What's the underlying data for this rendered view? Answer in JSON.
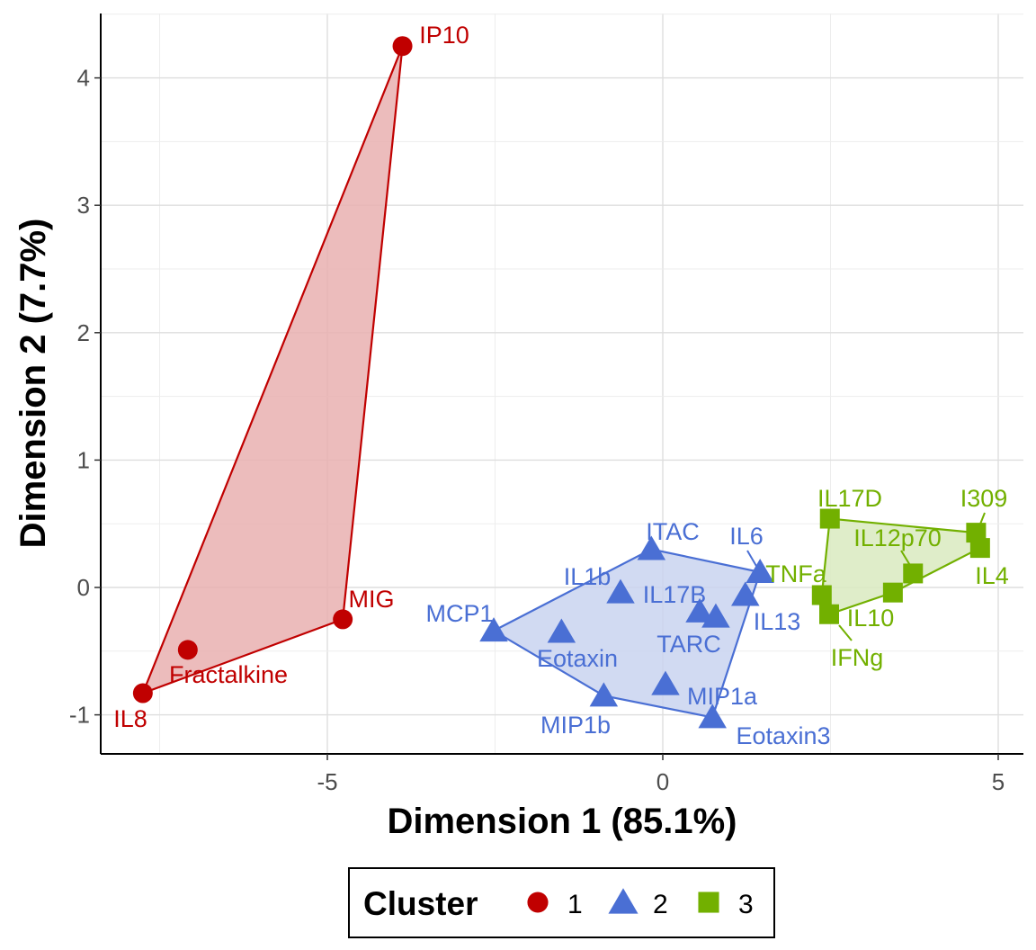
{
  "chart_data": {
    "type": "scatter",
    "xlabel": "Dimension 1 (85.1%)",
    "ylabel": "Dimension 2 (7.7%)",
    "xlim": [
      -8.3,
      5.4
    ],
    "ylim": [
      -1.3,
      4.5
    ],
    "xticks": [
      -5,
      0,
      5
    ],
    "yticks": [
      -1,
      0,
      1,
      2,
      3,
      4
    ],
    "grid": true,
    "legend": {
      "title": "Cluster",
      "position": "bottom",
      "entries": [
        "1",
        "2",
        "3"
      ]
    },
    "colors": {
      "1": "#C00000",
      "2": "#4A6FD4",
      "3": "#72B000"
    },
    "fills": {
      "1": "#E9B0B0",
      "2": "#C9D4F0",
      "3": "#D9EAC0"
    },
    "points": [
      {
        "label": "IP10",
        "x": -3.88,
        "y": 4.25,
        "cluster": "1"
      },
      {
        "label": "MIG",
        "x": -4.77,
        "y": -0.25,
        "cluster": "1"
      },
      {
        "label": "Fractalkine",
        "x": -7.08,
        "y": -0.49,
        "cluster": "1"
      },
      {
        "label": "IL8",
        "x": -7.75,
        "y": -0.83,
        "cluster": "1"
      },
      {
        "label": "ITAC",
        "x": -0.17,
        "y": 0.3,
        "cluster": "2"
      },
      {
        "label": "IL6",
        "x": 1.45,
        "y": 0.12,
        "cluster": "2"
      },
      {
        "label": "IL1b",
        "x": -0.63,
        "y": -0.04,
        "cluster": "2"
      },
      {
        "label": "IL17B",
        "x": 0.55,
        "y": -0.19,
        "cluster": "2"
      },
      {
        "label": "TARC",
        "x": 0.79,
        "y": -0.23,
        "cluster": "2"
      },
      {
        "label": "IL13",
        "x": 1.23,
        "y": -0.06,
        "cluster": "2"
      },
      {
        "label": "MCP1",
        "x": -2.52,
        "y": -0.34,
        "cluster": "2"
      },
      {
        "label": "Eotaxin",
        "x": -1.51,
        "y": -0.35,
        "cluster": "2"
      },
      {
        "label": "MIP1b",
        "x": -0.88,
        "y": -0.85,
        "cluster": "2"
      },
      {
        "label": "MIP1a",
        "x": 0.04,
        "y": -0.76,
        "cluster": "2"
      },
      {
        "label": "Eotaxin3",
        "x": 0.74,
        "y": -1.02,
        "cluster": "2"
      },
      {
        "label": "IL17D",
        "x": 2.49,
        "y": 0.54,
        "cluster": "3"
      },
      {
        "label": "I309",
        "x": 4.67,
        "y": 0.43,
        "cluster": "3"
      },
      {
        "label": "IL4",
        "x": 4.73,
        "y": 0.31,
        "cluster": "3"
      },
      {
        "label": "IL12p70",
        "x": 3.73,
        "y": 0.11,
        "cluster": "3"
      },
      {
        "label": "TNFa",
        "x": 2.37,
        "y": -0.06,
        "cluster": "3"
      },
      {
        "label": "IL10",
        "x": 3.43,
        "y": -0.04,
        "cluster": "3"
      },
      {
        "label": "IFNg",
        "x": 2.48,
        "y": -0.21,
        "cluster": "3"
      }
    ]
  }
}
